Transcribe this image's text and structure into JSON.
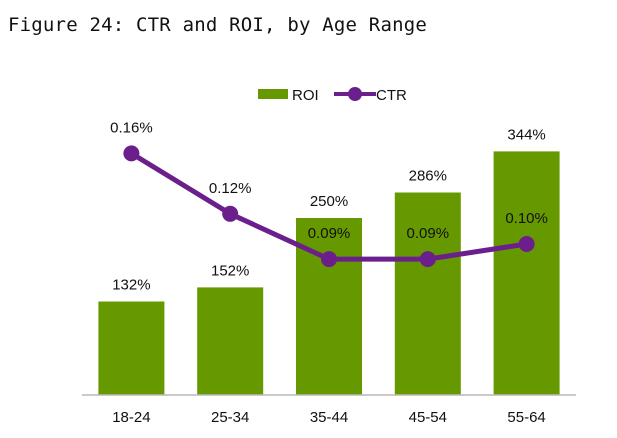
{
  "title": "Figure 24: CTR and ROI, by Age Range",
  "chart_data": {
    "type": "bar",
    "categories": [
      "18-24",
      "25-34",
      "35-44",
      "45-54",
      "55-64"
    ],
    "series": [
      {
        "name": "ROI",
        "type": "bar",
        "axis": "left",
        "values": [
          132,
          152,
          250,
          286,
          344
        ],
        "labels": [
          "132%",
          "152%",
          "250%",
          "286%",
          "344%"
        ],
        "color": "#669900"
      },
      {
        "name": "CTR",
        "type": "line",
        "axis": "right",
        "values": [
          0.16,
          0.12,
          0.09,
          0.09,
          0.1
        ],
        "labels": [
          "0.16%",
          "0.12%",
          "0.09%",
          "0.09%",
          "0.10%"
        ],
        "color": "#6b1f8c"
      }
    ],
    "legend_position": "top-center",
    "grid": false,
    "ylim_left": [
      0,
      370
    ],
    "ylim_right": [
      0,
      0.2
    ]
  }
}
